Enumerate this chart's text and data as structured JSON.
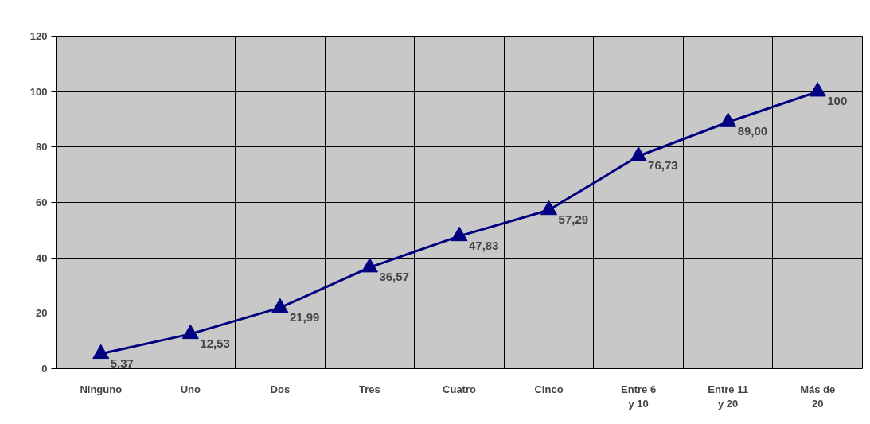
{
  "chart_data": {
    "type": "line",
    "categories": [
      "Ninguno",
      "Uno",
      "Dos",
      "Tres",
      "Cuatro",
      "Cinco",
      "Entre 6 y 10",
      "Entre 11 y 20",
      "Más de 20"
    ],
    "series": [
      {
        "color": "#000080",
        "values": [
          5.37,
          12.53,
          21.99,
          36.57,
          47.83,
          57.29,
          76.73,
          89.0,
          100
        ],
        "value_labels": [
          "5,37",
          "12,53",
          "21,99",
          "36,57",
          "47,83",
          "57,29",
          "76,73",
          "89,00",
          "100"
        ]
      }
    ],
    "ylim": [
      0,
      120
    ],
    "yticks": [
      0,
      20,
      40,
      60,
      80,
      100,
      120
    ],
    "grid": true,
    "marker": "triangle",
    "line_style": "solid"
  }
}
